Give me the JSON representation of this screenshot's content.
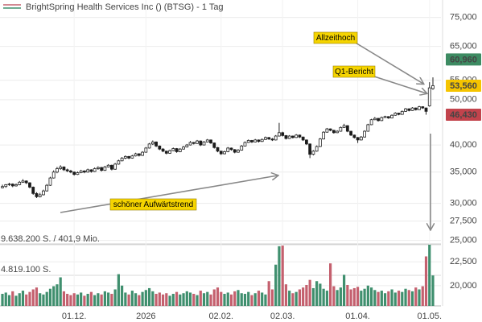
{
  "chart_data": {
    "type": "candlestick",
    "title": "BrightSpring Health Services Inc () (BTSG) - 1 Tag",
    "categories": [
      null,
      null,
      null,
      null,
      null,
      null,
      null,
      null,
      null,
      null,
      null,
      null,
      null,
      null,
      null,
      null,
      null,
      null,
      null,
      null,
      null,
      "01.12.",
      null,
      null,
      null,
      null,
      null,
      null,
      null,
      null,
      null,
      null,
      null,
      null,
      null,
      null,
      null,
      null,
      null,
      null,
      null,
      null,
      "2026",
      null,
      null,
      null,
      null,
      null,
      null,
      null,
      null,
      null,
      null,
      null,
      null,
      null,
      null,
      null,
      null,
      null,
      null,
      null,
      null,
      null,
      "02.02.",
      null,
      null,
      null,
      null,
      null,
      null,
      null,
      null,
      null,
      null,
      null,
      null,
      null,
      null,
      null,
      null,
      null,
      "02.03.",
      null,
      null,
      null,
      null,
      null,
      null,
      null,
      null,
      null,
      null,
      null,
      null,
      null,
      null,
      null,
      null,
      null,
      null,
      null,
      null,
      null,
      "01.04.",
      null,
      null,
      null,
      null,
      null,
      null,
      null,
      null,
      null,
      null,
      null,
      null,
      null,
      null,
      null,
      null,
      null,
      null,
      null,
      null,
      "01.05.",
      null
    ],
    "candles": [
      [
        32400,
        32900,
        32300,
        32600
      ],
      [
        32600,
        33000,
        32400,
        32900
      ],
      [
        32900,
        33200,
        32700,
        33000
      ],
      [
        33000,
        33100,
        32500,
        32700
      ],
      [
        32700,
        33100,
        32600,
        32900
      ],
      [
        32900,
        33500,
        32800,
        33300
      ],
      [
        33300,
        33800,
        33200,
        33500
      ],
      [
        33500,
        33600,
        33000,
        33200
      ],
      [
        33200,
        33300,
        32300,
        32500
      ],
      [
        32500,
        32600,
        31300,
        31500
      ],
      [
        31500,
        31700,
        30800,
        31000
      ],
      [
        31000,
        31600,
        30900,
        31300
      ],
      [
        31300,
        32100,
        31200,
        31900
      ],
      [
        31900,
        33000,
        31800,
        32800
      ],
      [
        32800,
        34200,
        32700,
        34000
      ],
      [
        34000,
        35300,
        33900,
        35000
      ],
      [
        35000,
        35900,
        34800,
        35600
      ],
      [
        35600,
        36200,
        35400,
        35900
      ],
      [
        35900,
        36000,
        35200,
        35400
      ],
      [
        35400,
        35600,
        35000,
        35200
      ],
      [
        35200,
        35400,
        34800,
        35000
      ],
      [
        35000,
        35100,
        34400,
        34600
      ],
      [
        34600,
        35100,
        34500,
        34900
      ],
      [
        34900,
        35400,
        34800,
        35200
      ],
      [
        35200,
        35300,
        34800,
        35000
      ],
      [
        35000,
        35600,
        34900,
        35400
      ],
      [
        35400,
        35500,
        34900,
        35100
      ],
      [
        35100,
        35800,
        35000,
        35600
      ],
      [
        35600,
        36000,
        35400,
        35800
      ],
      [
        35800,
        35900,
        35100,
        35300
      ],
      [
        35300,
        36100,
        35200,
        35900
      ],
      [
        35900,
        36400,
        35800,
        36200
      ],
      [
        36200,
        36300,
        35300,
        35500
      ],
      [
        35500,
        36600,
        35400,
        36400
      ],
      [
        36400,
        37200,
        36300,
        37000
      ],
      [
        37000,
        37700,
        36900,
        37500
      ],
      [
        37500,
        38000,
        37300,
        37800
      ],
      [
        37800,
        37900,
        37300,
        37500
      ],
      [
        37500,
        38100,
        37400,
        37900
      ],
      [
        37900,
        38500,
        37800,
        38300
      ],
      [
        38300,
        38400,
        37800,
        38000
      ],
      [
        38000,
        38800,
        37900,
        38600
      ],
      [
        38600,
        39600,
        38500,
        39400
      ],
      [
        39400,
        40400,
        39300,
        40200
      ],
      [
        40200,
        40900,
        40000,
        40600
      ],
      [
        40600,
        40700,
        39600,
        39800
      ],
      [
        39800,
        39900,
        39000,
        39200
      ],
      [
        39200,
        39400,
        38600,
        38800
      ],
      [
        38800,
        38900,
        38200,
        38400
      ],
      [
        38400,
        39100,
        38300,
        38900
      ],
      [
        38900,
        39500,
        38800,
        39300
      ],
      [
        39300,
        39400,
        38500,
        38700
      ],
      [
        38700,
        39400,
        38600,
        39200
      ],
      [
        39200,
        39800,
        39100,
        39600
      ],
      [
        39600,
        40200,
        39500,
        40000
      ],
      [
        40000,
        40800,
        39900,
        40500
      ],
      [
        40500,
        40600,
        40100,
        40300
      ],
      [
        40300,
        41000,
        40200,
        40800
      ],
      [
        40800,
        40900,
        39800,
        40000
      ],
      [
        40000,
        40800,
        39900,
        40600
      ],
      [
        40600,
        41200,
        40500,
        41000
      ],
      [
        41000,
        41100,
        40200,
        40400
      ],
      [
        40400,
        40500,
        39300,
        39500
      ],
      [
        39500,
        39600,
        38600,
        38800
      ],
      [
        38800,
        38900,
        38100,
        38300
      ],
      [
        38300,
        38900,
        38200,
        38700
      ],
      [
        38700,
        39600,
        38600,
        39400
      ],
      [
        39400,
        39500,
        38900,
        39100
      ],
      [
        39100,
        39200,
        38400,
        38600
      ],
      [
        38600,
        39200,
        38500,
        39000
      ],
      [
        39000,
        40000,
        38900,
        39800
      ],
      [
        39800,
        40700,
        39700,
        40500
      ],
      [
        40500,
        41100,
        40400,
        40900
      ],
      [
        40900,
        41000,
        40400,
        40600
      ],
      [
        40600,
        41200,
        40500,
        41000
      ],
      [
        41000,
        41100,
        40500,
        40700
      ],
      [
        40700,
        41300,
        40600,
        41100
      ],
      [
        41100,
        41700,
        41000,
        41500
      ],
      [
        41500,
        41600,
        41000,
        41200
      ],
      [
        41200,
        41400,
        40800,
        41000
      ],
      [
        41000,
        42000,
        40900,
        41800
      ],
      [
        41800,
        44600,
        41700,
        42500
      ],
      [
        42500,
        42700,
        41700,
        41900
      ],
      [
        41900,
        42000,
        41100,
        41300
      ],
      [
        41300,
        42000,
        41200,
        41800
      ],
      [
        41800,
        41900,
        41300,
        41500
      ],
      [
        41500,
        42200,
        41400,
        42000
      ],
      [
        42000,
        42100,
        41400,
        41600
      ],
      [
        41600,
        41700,
        40800,
        41000
      ],
      [
        41000,
        41100,
        40000,
        40200
      ],
      [
        40200,
        40300,
        37500,
        38200
      ],
      [
        38200,
        39000,
        38000,
        38800
      ],
      [
        38800,
        39900,
        38700,
        39700
      ],
      [
        39700,
        41400,
        39600,
        41200
      ],
      [
        41200,
        42800,
        41100,
        42600
      ],
      [
        42600,
        43500,
        42500,
        43300
      ],
      [
        43300,
        43400,
        42800,
        43000
      ],
      [
        43000,
        43100,
        42300,
        42500
      ],
      [
        42500,
        43000,
        42400,
        42800
      ],
      [
        42800,
        43800,
        42700,
        43600
      ],
      [
        43600,
        44400,
        43500,
        44000
      ],
      [
        44000,
        44100,
        42600,
        42800
      ],
      [
        42800,
        42900,
        41800,
        42000
      ],
      [
        42000,
        42100,
        41300,
        41500
      ],
      [
        41500,
        41600,
        40400,
        41000
      ],
      [
        41000,
        41800,
        40900,
        41600
      ],
      [
        41600,
        43000,
        41500,
        42800
      ],
      [
        42800,
        44400,
        42700,
        44200
      ],
      [
        44200,
        45500,
        44100,
        45300
      ],
      [
        45300,
        45900,
        45200,
        45600
      ],
      [
        45600,
        45700,
        44900,
        45100
      ],
      [
        45100,
        46000,
        45000,
        45800
      ],
      [
        45800,
        46200,
        45700,
        46000
      ],
      [
        46000,
        46100,
        45500,
        45700
      ],
      [
        45700,
        46500,
        45600,
        46300
      ],
      [
        46300,
        47000,
        46200,
        46800
      ],
      [
        46800,
        46900,
        46300,
        46500
      ],
      [
        46500,
        47400,
        46400,
        47200
      ],
      [
        47200,
        48000,
        47100,
        47800
      ],
      [
        47800,
        47900,
        47200,
        47400
      ],
      [
        47400,
        48200,
        47300,
        48000
      ],
      [
        48000,
        48100,
        47400,
        47600
      ],
      [
        47600,
        48500,
        47500,
        48300
      ],
      [
        48300,
        48400,
        47800,
        48000
      ],
      [
        48000,
        48100,
        46430,
        47200
      ],
      [
        48500,
        54500,
        48300,
        53000
      ],
      [
        52800,
        55800,
        52500,
        53560
      ]
    ],
    "volume": [
      1900000,
      2100000,
      1700000,
      2300000,
      1600000,
      2000000,
      2400000,
      1800000,
      2200000,
      2600000,
      2900000,
      2000000,
      1800000,
      2200000,
      2700000,
      3100000,
      3400000,
      4500000,
      2300000,
      1900000,
      1700000,
      2000000,
      1800000,
      2100000,
      1600000,
      1900000,
      2200000,
      1700000,
      2000000,
      1800000,
      2300000,
      2100000,
      1900000,
      2600000,
      5000000,
      3200000,
      2100000,
      1800000,
      2400000,
      2000000,
      1700000,
      2200000,
      2500000,
      2800000,
      2300000,
      1900000,
      2100000,
      1800000,
      2000000,
      1600000,
      1900000,
      2200000,
      1800000,
      2000000,
      2300000,
      2100000,
      1900000,
      1700000,
      2400000,
      2000000,
      2200000,
      1800000,
      2600000,
      2900000,
      2200000,
      1900000,
      2100000,
      1800000,
      2300000,
      2500000,
      2000000,
      1900000,
      2200000,
      1700000,
      2000000,
      2400000,
      2100000,
      1800000,
      3900000,
      2600000,
      6500000,
      9400000,
      9500000,
      3400000,
      2400000,
      2000000,
      2200000,
      2600000,
      2900000,
      3300000,
      4100000,
      2800000,
      3900000,
      3500000,
      2700000,
      2400000,
      6700000,
      3100000,
      2500000,
      2900000,
      4900000,
      3300000,
      2600000,
      2800000,
      3000000,
      2400000,
      2700000,
      3200000,
      2900000,
      2500000,
      2200000,
      2400000,
      2000000,
      2300000,
      2600000,
      2100000,
      2400000,
      2200000,
      2700000,
      2500000,
      2300000,
      2900000,
      2600000,
      3100000,
      7800000,
      9638200,
      4800000
    ],
    "ylim": [
      17750,
      81700
    ],
    "log_scale": true,
    "yticks": [
      {
        "value": 75000,
        "label": "75,000"
      },
      {
        "value": 65000,
        "label": "65,000"
      },
      {
        "value": 55000,
        "label": "55,000"
      },
      {
        "value": 50000,
        "label": "50,000"
      },
      {
        "value": 40000,
        "label": "40,000"
      },
      {
        "value": 35000,
        "label": "35,000"
      },
      {
        "value": 30000,
        "label": "30,000"
      },
      {
        "value": 27500,
        "label": "27,500"
      },
      {
        "value": 25000,
        "label": "25,000"
      },
      {
        "value": 22500,
        "label": "22,500"
      },
      {
        "value": 20000,
        "label": "20,000"
      }
    ],
    "grid": true,
    "up_color": "#ffffff",
    "down_color": "#1a1a1a",
    "volume_up_color": "#3f8f6e",
    "volume_down_color": "#c4606e",
    "volume_lim": [
      0,
      9638200
    ],
    "volume_ticks": [
      {
        "value": 9638200,
        "label": "9.638.200 S. / 401,9 Mio."
      },
      {
        "value": 4819100,
        "label": "4.819.100 S."
      }
    ],
    "price_labels": [
      {
        "value": 60960,
        "label": "60,960",
        "color": "#3d8b62"
      },
      {
        "value": 53560,
        "label": "53,560",
        "color": "#f5c400"
      },
      {
        "value": 46430,
        "label": "46,430",
        "color": "#c2434c"
      }
    ],
    "annotations": [
      "Allzeithoch",
      "Q1-Bericht",
      "schöner Aufwärtstrend"
    ]
  }
}
